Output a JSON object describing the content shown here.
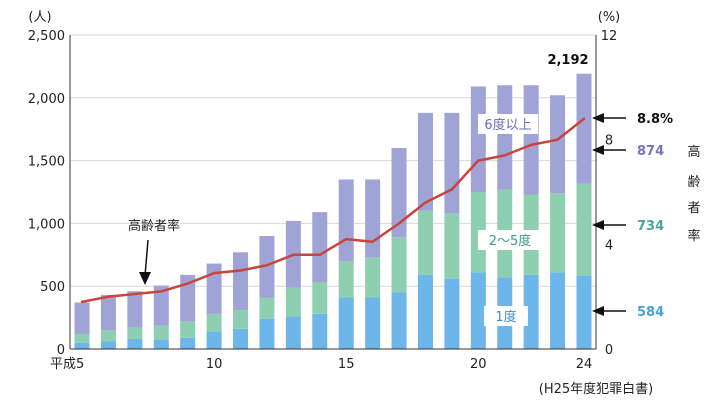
{
  "chart_data": {
    "type": "bar",
    "unit_left": "(人)",
    "unit_right": "(%)",
    "x_tick_labels": [
      "平成5",
      "10",
      "15",
      "20",
      "24"
    ],
    "y_left_ticks": [
      "0",
      "500",
      "1,000",
      "1,500",
      "2,000",
      "2,500"
    ],
    "y_right_ticks": [
      "0",
      "4",
      "8",
      "12"
    ],
    "ylim_left": [
      0,
      2500
    ],
    "ylim_right": [
      0,
      12
    ],
    "x": [
      5,
      6,
      7,
      8,
      9,
      10,
      11,
      12,
      13,
      14,
      15,
      16,
      17,
      18,
      19,
      20,
      21,
      22,
      23,
      24
    ],
    "series": [
      {
        "name": "1度",
        "color": "#6cb6ea",
        "values": [
          50,
          60,
          80,
          75,
          90,
          140,
          160,
          240,
          260,
          280,
          410,
          410,
          450,
          590,
          560,
          610,
          570,
          590,
          610,
          584
        ]
      },
      {
        "name": "2～5度",
        "color": "#8fcfb1",
        "values": [
          70,
          90,
          90,
          110,
          130,
          140,
          150,
          170,
          230,
          250,
          290,
          320,
          440,
          510,
          520,
          640,
          700,
          640,
          630,
          734
        ]
      },
      {
        "name": "6度以上",
        "color": "#9fa3d6",
        "values": [
          250,
          280,
          290,
          320,
          370,
          400,
          460,
          490,
          530,
          560,
          650,
          620,
          710,
          780,
          800,
          840,
          830,
          870,
          780,
          874
        ]
      }
    ],
    "line": {
      "name": "高齢者率",
      "color": "#c9443c",
      "values": [
        1.8,
        2.0,
        2.1,
        2.2,
        2.5,
        2.9,
        3.0,
        3.2,
        3.6,
        3.6,
        4.2,
        4.1,
        4.8,
        5.6,
        6.1,
        7.2,
        7.4,
        7.8,
        8.0,
        8.8
      ]
    },
    "annotations": {
      "total_last": "2,192",
      "rate_last": "8.8%",
      "series_last": [
        "874",
        "734",
        "584"
      ],
      "vertical_label": [
        "高",
        "齢",
        "者",
        "率"
      ],
      "line_callout": "高齢者率"
    },
    "source": "(H25年度犯罪白書)",
    "legend_placement": "inside bars"
  }
}
